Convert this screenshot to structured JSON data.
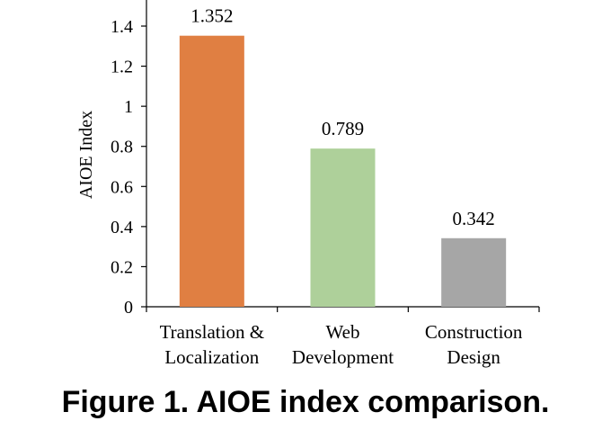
{
  "chart_data": {
    "type": "bar",
    "categories": [
      "Translation & Localization",
      "Web Development",
      "Construction Design"
    ],
    "category_lines": [
      [
        "Translation &",
        "Localization"
      ],
      [
        "Web",
        "Development"
      ],
      [
        "Construction",
        "Design"
      ]
    ],
    "values": [
      1.352,
      0.789,
      0.342
    ],
    "value_labels": [
      "1.352",
      "0.789",
      "0.342"
    ],
    "colors": [
      "#E07F42",
      "#AED09A",
      "#A6A6A6"
    ],
    "ylabel": "AIOE Index",
    "ylim": [
      0,
      1.5
    ],
    "yticks": [
      0,
      0.2,
      0.4,
      0.6,
      0.8,
      1,
      1.2,
      1.4
    ],
    "ytick_labels": [
      "0",
      "0.2",
      "0.4",
      "0.6",
      "0.8",
      "1",
      "1.2",
      "1.4"
    ],
    "grid": false,
    "legend": "none"
  },
  "caption": "Figure 1. AIOE index comparison."
}
